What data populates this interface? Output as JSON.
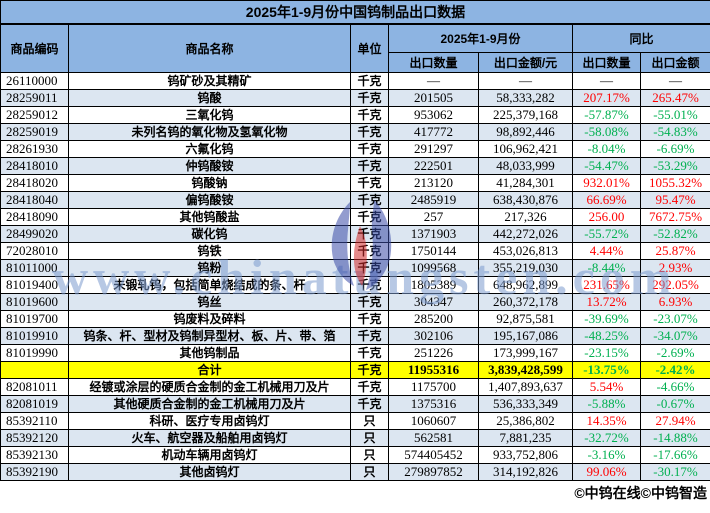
{
  "title": "2025年1-9月份中国钨制品出口数据",
  "header": {
    "col_code": "商品编码",
    "col_name": "商品名称",
    "col_unit": "单位",
    "group_period": "2025年1-9月份",
    "group_yoy": "同比",
    "col_qty": "出口数量",
    "col_amount": "出口金额/元",
    "col_yoy_qty": "出口数量",
    "col_yoy_amount": "出口金额"
  },
  "rows": [
    {
      "type": "data",
      "code": "26110000",
      "name": "钨矿砂及其精矿",
      "unit": "千克",
      "qty": "—",
      "amount": "—",
      "yoy_qty": "—",
      "yoy_amount": "—",
      "qty_dir": "flat",
      "amt_dir": "flat"
    },
    {
      "type": "data",
      "code": "28259011",
      "name": "钨酸",
      "unit": "千克",
      "qty": "201505",
      "amount": "58,333,282",
      "yoy_qty": "207.17%",
      "yoy_amount": "265.47%",
      "qty_dir": "up",
      "amt_dir": "up"
    },
    {
      "type": "data",
      "code": "28259012",
      "name": "三氧化钨",
      "unit": "千克",
      "qty": "953062",
      "amount": "225,379,168",
      "yoy_qty": "-57.87%",
      "yoy_amount": "-55.01%",
      "qty_dir": "down",
      "amt_dir": "down"
    },
    {
      "type": "data",
      "code": "28259019",
      "name": "未列名钨的氧化物及氢氧化物",
      "unit": "千克",
      "qty": "417772",
      "amount": "98,892,446",
      "yoy_qty": "-58.08%",
      "yoy_amount": "-54.83%",
      "qty_dir": "down",
      "amt_dir": "down"
    },
    {
      "type": "data",
      "code": "28261930",
      "name": "六氟化钨",
      "unit": "千克",
      "qty": "291297",
      "amount": "106,962,421",
      "yoy_qty": "-8.04%",
      "yoy_amount": "-6.69%",
      "qty_dir": "down",
      "amt_dir": "down"
    },
    {
      "type": "data",
      "code": "28418010",
      "name": "仲钨酸铵",
      "unit": "千克",
      "qty": "222501",
      "amount": "48,033,999",
      "yoy_qty": "-54.47%",
      "yoy_amount": "-53.29%",
      "qty_dir": "down",
      "amt_dir": "down"
    },
    {
      "type": "data",
      "code": "28418020",
      "name": "钨酸钠",
      "unit": "千克",
      "qty": "213120",
      "amount": "41,284,301",
      "yoy_qty": "932.01%",
      "yoy_amount": "1055.32%",
      "qty_dir": "up",
      "amt_dir": "up"
    },
    {
      "type": "data",
      "code": "28418040",
      "name": "偏钨酸铵",
      "unit": "千克",
      "qty": "2485919",
      "amount": "638,430,876",
      "yoy_qty": "66.69%",
      "yoy_amount": "95.47%",
      "qty_dir": "up",
      "amt_dir": "up"
    },
    {
      "type": "data",
      "code": "28418090",
      "name": "其他钨酸盐",
      "unit": "千克",
      "qty": "257",
      "amount": "217,326",
      "yoy_qty": "256.00",
      "yoy_amount": "7672.75%",
      "qty_dir": "up",
      "amt_dir": "up"
    },
    {
      "type": "data",
      "code": "28499020",
      "name": "碳化钨",
      "unit": "千克",
      "qty": "1371903",
      "amount": "442,272,026",
      "yoy_qty": "-55.72%",
      "yoy_amount": "-52.82%",
      "qty_dir": "down",
      "amt_dir": "down"
    },
    {
      "type": "data",
      "code": "72028010",
      "name": "钨铁",
      "unit": "千克",
      "qty": "1750144",
      "amount": "453,026,813",
      "yoy_qty": "4.44%",
      "yoy_amount": "25.87%",
      "qty_dir": "up",
      "amt_dir": "up"
    },
    {
      "type": "data",
      "code": "81011000",
      "name": "钨粉",
      "unit": "千克",
      "qty": "1099568",
      "amount": "355,219,030",
      "yoy_qty": "-8.44%",
      "yoy_amount": "2.93%",
      "qty_dir": "down",
      "amt_dir": "up"
    },
    {
      "type": "data",
      "code": "81019400",
      "name": "未锻轧钨，包括简单烧结成的条、杆",
      "unit": "千克",
      "qty": "1805389",
      "amount": "648,962,899",
      "yoy_qty": "231.65%",
      "yoy_amount": "292.05%",
      "qty_dir": "up",
      "amt_dir": "up"
    },
    {
      "type": "data",
      "code": "81019600",
      "name": "钨丝",
      "unit": "千克",
      "qty": "304347",
      "amount": "260,372,178",
      "yoy_qty": "13.72%",
      "yoy_amount": "6.93%",
      "qty_dir": "up",
      "amt_dir": "up"
    },
    {
      "type": "data",
      "code": "81019700",
      "name": "钨废料及碎料",
      "unit": "千克",
      "qty": "285200",
      "amount": "92,875,581",
      "yoy_qty": "-39.69%",
      "yoy_amount": "-23.07%",
      "qty_dir": "down",
      "amt_dir": "down"
    },
    {
      "type": "data",
      "code": "81019910",
      "name": "钨条、杆、型材及钨制异型材、板、片、带、箔",
      "unit": "千克",
      "qty": "302106",
      "amount": "195,167,086",
      "yoy_qty": "-48.25%",
      "yoy_amount": "-34.07%",
      "qty_dir": "down",
      "amt_dir": "down"
    },
    {
      "type": "data",
      "code": "81019990",
      "name": "其他钨制品",
      "unit": "千克",
      "qty": "251226",
      "amount": "173,999,167",
      "yoy_qty": "-23.15%",
      "yoy_amount": "-2.69%",
      "qty_dir": "down",
      "amt_dir": "down"
    },
    {
      "type": "total",
      "code": "",
      "name": "合计",
      "unit": "千克",
      "qty": "11955316",
      "amount": "3,839,428,599",
      "yoy_qty": "-13.75%",
      "yoy_amount": "-2.42%",
      "qty_dir": "down",
      "amt_dir": "down"
    },
    {
      "type": "data",
      "code": "82081011",
      "name": "经镀或涂层的硬质合金制的金工机械用刀及片",
      "unit": "千克",
      "qty": "1175700",
      "amount": "1,407,893,637",
      "yoy_qty": "5.54%",
      "yoy_amount": "-4.66%",
      "qty_dir": "up",
      "amt_dir": "down"
    },
    {
      "type": "data",
      "code": "82081019",
      "name": "其他硬质合金制的金工机械用刀及片",
      "unit": "千克",
      "qty": "1375316",
      "amount": "536,333,349",
      "yoy_qty": "-5.88%",
      "yoy_amount": "-0.67%",
      "qty_dir": "down",
      "amt_dir": "down"
    },
    {
      "type": "data",
      "code": "85392110",
      "name": "科研、医疗专用卤钨灯",
      "unit": "只",
      "qty": "1060607",
      "amount": "25,386,802",
      "yoy_qty": "14.35%",
      "yoy_amount": "27.94%",
      "qty_dir": "up",
      "amt_dir": "up"
    },
    {
      "type": "data",
      "code": "85392120",
      "name": "火车、航空器及船舶用卤钨灯",
      "unit": "只",
      "qty": "562581",
      "amount": "7,881,235",
      "yoy_qty": "-32.72%",
      "yoy_amount": "-14.88%",
      "qty_dir": "down",
      "amt_dir": "down"
    },
    {
      "type": "data",
      "code": "85392130",
      "name": "机动车辆用卤钨灯",
      "unit": "只",
      "qty": "574405452",
      "amount": "933,752,806",
      "yoy_qty": "-3.16%",
      "yoy_amount": "-17.66%",
      "qty_dir": "down",
      "amt_dir": "down"
    },
    {
      "type": "data",
      "code": "85392190",
      "name": "其他卤钨灯",
      "unit": "只",
      "qty": "279897852",
      "amount": "314,192,826",
      "yoy_qty": "99.06%",
      "yoy_amount": "-30.17%",
      "qty_dir": "up",
      "amt_dir": "down"
    }
  ],
  "footer": "©中钨在线©中钨智造",
  "watermark": {
    "text": "www.chinatungsten.com",
    "logo": "chinatungsten-tulip-logo"
  },
  "colors": {
    "header_bg": "#8DB4E2",
    "stripe_bg": "#DCE6F1",
    "total_bg": "#FFFF00",
    "up": "#FF0000",
    "down": "#00B050",
    "flat": "#000000",
    "watermark": "rgba(124,155,205,0.55)"
  }
}
